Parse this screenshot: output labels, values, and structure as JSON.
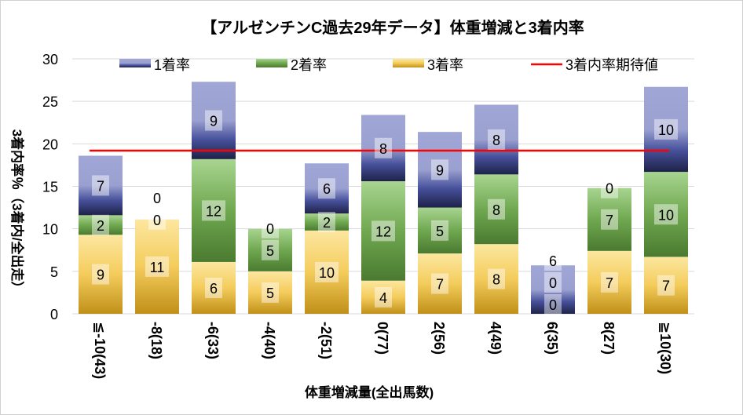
{
  "chart_data": {
    "type": "bar",
    "stacked": true,
    "title": "【アルゼンチンC過去29年データ】体重増減と3着内率",
    "xlabel": "体重増減量(全出馬数)",
    "ylabel": "3着内率％（3着内/全出走）",
    "ylim": [
      0,
      30
    ],
    "yticks": [
      "0",
      "5",
      "10",
      "15",
      "20",
      "25",
      "30"
    ],
    "grid": true,
    "legend_position": "top",
    "categories": [
      "≦-10(43)",
      "-8(18)",
      "-6(33)",
      "-4(40)",
      "-2(51)",
      "0(77)",
      "2(56)",
      "4(49)",
      "6(35)",
      "8(27)",
      "≧10(30)"
    ],
    "series": [
      {
        "name": "3着率",
        "color": "#e0b030",
        "values": [
          9.3,
          11.1,
          6.1,
          5.0,
          9.8,
          3.9,
          7.1,
          8.2,
          0.0,
          7.4,
          6.7
        ],
        "labels": [
          "9",
          "11",
          "6",
          "5",
          "10",
          "4",
          "7",
          "8",
          "0",
          "7",
          "7"
        ]
      },
      {
        "name": "2着率",
        "color": "#70a850",
        "values": [
          2.3,
          0.0,
          12.1,
          5.0,
          2.0,
          11.7,
          5.4,
          8.2,
          0.0,
          7.4,
          10.0
        ],
        "labels": [
          "2",
          "0",
          "12",
          "5",
          "2",
          "12",
          "5",
          "8",
          "0",
          "7",
          "10"
        ]
      },
      {
        "name": "1着率",
        "color": "#5058a0",
        "values": [
          7.0,
          0.0,
          9.1,
          0.0,
          5.9,
          7.8,
          8.9,
          8.2,
          5.7,
          0.0,
          10.0
        ],
        "labels": [
          "7",
          "0",
          "9",
          "0",
          "6",
          "8",
          "9",
          "8",
          "6",
          "0",
          "10"
        ]
      }
    ],
    "line": {
      "name": "3着内率期待値",
      "color": "#ff0000",
      "value": 19.2
    }
  }
}
